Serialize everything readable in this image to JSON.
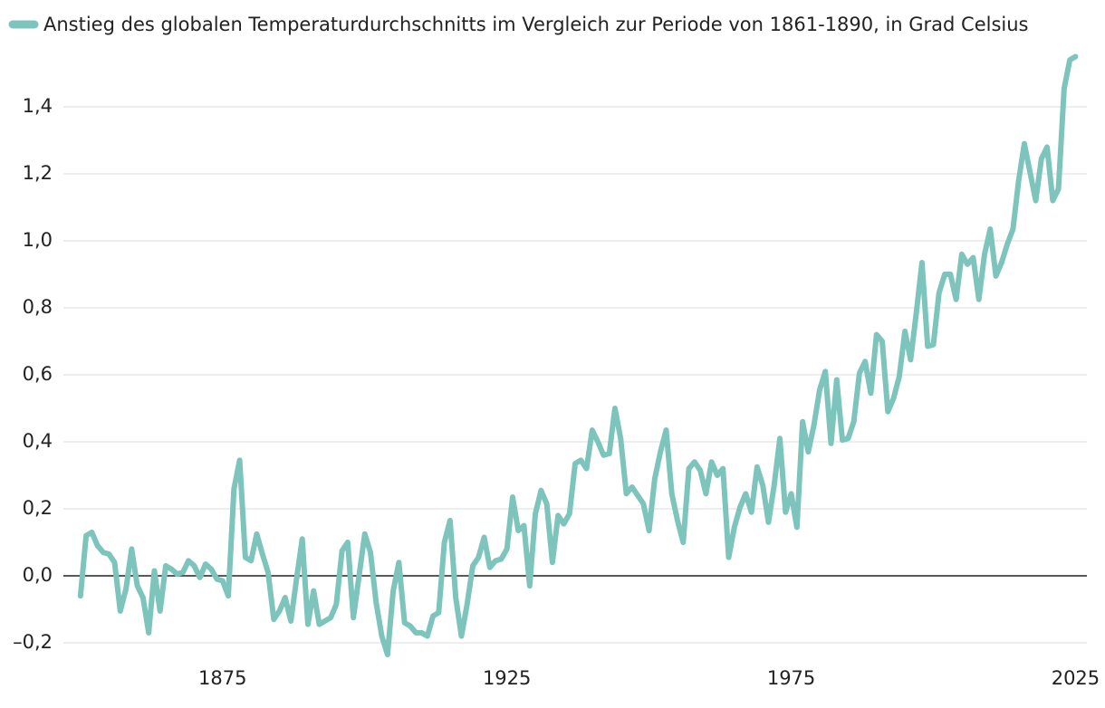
{
  "chart_data": {
    "type": "line",
    "x": [
      1850,
      1851,
      1852,
      1853,
      1854,
      1855,
      1856,
      1857,
      1858,
      1859,
      1860,
      1861,
      1862,
      1863,
      1864,
      1865,
      1866,
      1867,
      1868,
      1869,
      1870,
      1871,
      1872,
      1873,
      1874,
      1875,
      1876,
      1877,
      1878,
      1879,
      1880,
      1881,
      1882,
      1883,
      1884,
      1885,
      1886,
      1887,
      1888,
      1889,
      1890,
      1891,
      1892,
      1893,
      1894,
      1895,
      1896,
      1897,
      1898,
      1899,
      1900,
      1901,
      1902,
      1903,
      1904,
      1905,
      1906,
      1907,
      1908,
      1909,
      1910,
      1911,
      1912,
      1913,
      1914,
      1915,
      1916,
      1917,
      1918,
      1919,
      1920,
      1921,
      1922,
      1923,
      1924,
      1925,
      1926,
      1927,
      1928,
      1929,
      1930,
      1931,
      1932,
      1933,
      1934,
      1935,
      1936,
      1937,
      1938,
      1939,
      1940,
      1941,
      1942,
      1943,
      1944,
      1945,
      1946,
      1947,
      1948,
      1949,
      1950,
      1951,
      1952,
      1953,
      1954,
      1955,
      1956,
      1957,
      1958,
      1959,
      1960,
      1961,
      1962,
      1963,
      1964,
      1965,
      1966,
      1967,
      1968,
      1969,
      1970,
      1971,
      1972,
      1973,
      1974,
      1975,
      1976,
      1977,
      1978,
      1979,
      1980,
      1981,
      1982,
      1983,
      1984,
      1985,
      1986,
      1987,
      1988,
      1989,
      1990,
      1991,
      1992,
      1993,
      1994,
      1995,
      1996,
      1997,
      1998,
      1999,
      2000,
      2001,
      2002,
      2003,
      2004,
      2005,
      2006,
      2007,
      2008,
      2009,
      2010,
      2011,
      2012,
      2013,
      2014,
      2015,
      2016,
      2017,
      2018,
      2019,
      2020,
      2021,
      2022,
      2023,
      2024,
      2025
    ],
    "series": [
      {
        "name": "Anstieg des globalen Temperaturdurchschnitts im Vergleich zur Periode von 1861-1890, in Grad Celsius",
        "color": "#7dc4bc",
        "values": [
          -0.06,
          0.12,
          0.13,
          0.09,
          0.07,
          0.065,
          0.04,
          -0.105,
          -0.04,
          0.08,
          -0.03,
          -0.065,
          -0.17,
          0.015,
          -0.105,
          0.03,
          0.02,
          0.005,
          0.01,
          0.045,
          0.03,
          -0.005,
          0.035,
          0.02,
          -0.01,
          -0.015,
          -0.06,
          0.26,
          0.345,
          0.055,
          0.045,
          0.125,
          0.065,
          0.01,
          -0.13,
          -0.105,
          -0.065,
          -0.135,
          -0.01,
          0.11,
          -0.145,
          -0.045,
          -0.145,
          -0.135,
          -0.125,
          -0.085,
          0.075,
          0.1,
          -0.125,
          0.0,
          0.125,
          0.07,
          -0.08,
          -0.18,
          -0.235,
          -0.045,
          0.04,
          -0.14,
          -0.15,
          -0.17,
          -0.17,
          -0.18,
          -0.12,
          -0.11,
          0.1,
          0.165,
          -0.065,
          -0.18,
          -0.085,
          0.03,
          0.055,
          0.115,
          0.025,
          0.045,
          0.05,
          0.08,
          0.235,
          0.135,
          0.15,
          -0.03,
          0.185,
          0.255,
          0.215,
          0.04,
          0.18,
          0.155,
          0.185,
          0.335,
          0.345,
          0.32,
          0.435,
          0.4,
          0.36,
          0.365,
          0.5,
          0.41,
          0.245,
          0.265,
          0.24,
          0.215,
          0.135,
          0.29,
          0.37,
          0.435,
          0.245,
          0.165,
          0.1,
          0.32,
          0.34,
          0.315,
          0.245,
          0.34,
          0.3,
          0.32,
          0.055,
          0.145,
          0.205,
          0.245,
          0.19,
          0.325,
          0.27,
          0.16,
          0.27,
          0.41,
          0.19,
          0.245,
          0.145,
          0.46,
          0.37,
          0.45,
          0.555,
          0.61,
          0.395,
          0.585,
          0.405,
          0.41,
          0.46,
          0.605,
          0.64,
          0.545,
          0.72,
          0.7,
          0.49,
          0.53,
          0.595,
          0.73,
          0.645,
          0.785,
          0.935,
          0.685,
          0.69,
          0.845,
          0.9,
          0.9,
          0.825,
          0.96,
          0.93,
          0.95,
          0.825,
          0.96,
          1.035,
          0.895,
          0.935,
          0.99,
          1.035,
          1.18,
          1.29,
          1.205,
          1.12,
          1.245,
          1.28,
          1.12,
          1.155,
          1.455,
          1.54,
          1.55
        ]
      }
    ],
    "xlim": [
      1847,
      2027
    ],
    "xticks": [
      1875,
      1925,
      1975,
      2025
    ],
    "ylim": [
      -0.25,
      1.6
    ],
    "yticks": [
      {
        "value": -0.2,
        "label": "–0,2"
      },
      {
        "value": 0,
        "label": "0,0"
      },
      {
        "value": 0.2,
        "label": "0,2"
      },
      {
        "value": 0.4,
        "label": "0,4"
      },
      {
        "value": 0.6,
        "label": "0,6"
      },
      {
        "value": 0.8,
        "label": "0,8"
      },
      {
        "value": 1.0,
        "label": "1,0"
      },
      {
        "value": 1.2,
        "label": "1,2"
      },
      {
        "value": 1.4,
        "label": "1,4"
      }
    ],
    "grid": true,
    "legend": "top"
  }
}
